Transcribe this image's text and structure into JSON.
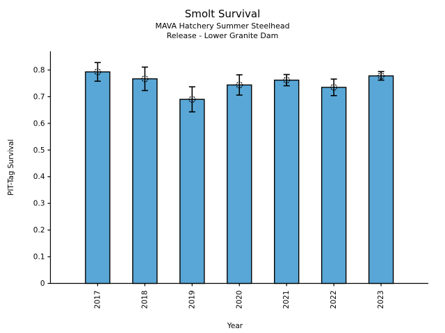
{
  "chart_data": {
    "type": "bar",
    "title": "Smolt Survival",
    "subtitle1": "MAVA Hatchery Summer Steelhead",
    "subtitle2": "Release - Lower Granite Dam",
    "xlabel": "Year",
    "ylabel": "PIT-Tag Survival",
    "categories": [
      "2017",
      "2018",
      "2019",
      "2020",
      "2021",
      "2022",
      "2023"
    ],
    "values": [
      0.793,
      0.767,
      0.69,
      0.744,
      0.762,
      0.735,
      0.778
    ],
    "error_bars": [
      0.035,
      0.044,
      0.047,
      0.038,
      0.021,
      0.031,
      0.016
    ],
    "yticks": [
      0,
      0.1,
      0.2,
      0.3,
      0.4,
      0.5,
      0.6,
      0.7,
      0.8
    ],
    "ytick_labels": [
      "0",
      "0.1",
      "0.2",
      "0.3",
      "0.4",
      "0.5",
      "0.6",
      "0.7",
      "0.8"
    ],
    "ylim": [
      0,
      0.87
    ],
    "x_tick_label_rotation": 90,
    "grid": false,
    "legend": null,
    "marker": "open-circle",
    "bar_color": "#59A7D6",
    "bar_edge_color": "#000000",
    "error_color": "#000000",
    "text_color": "#000000",
    "background_color": "#ffffff"
  }
}
